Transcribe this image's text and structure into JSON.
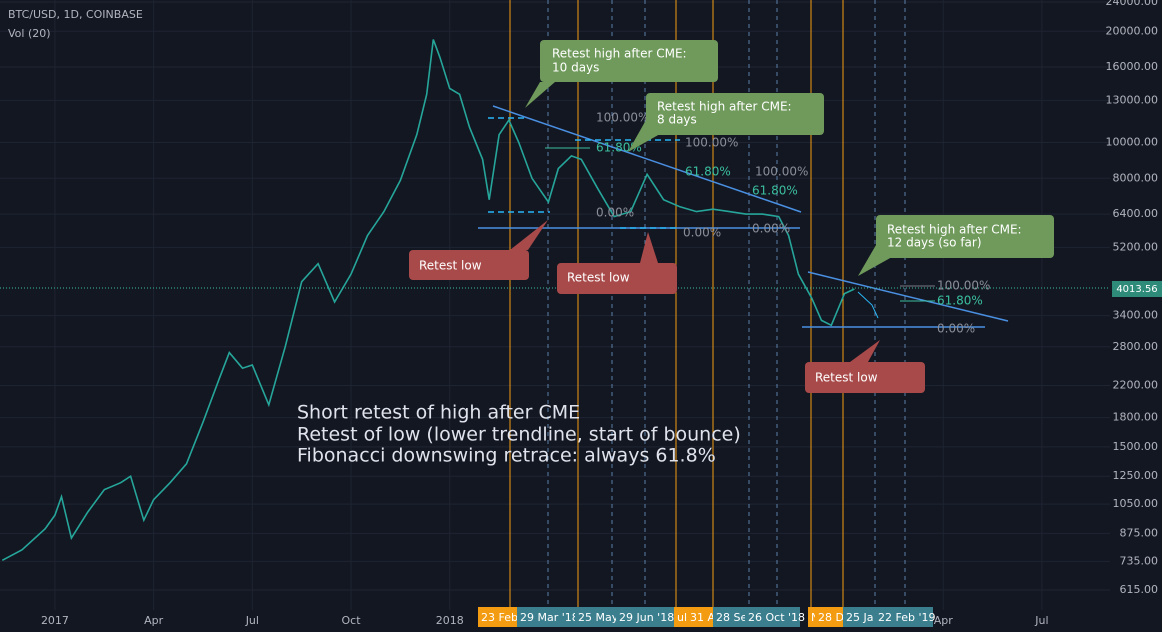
{
  "chart_data": {
    "type": "line",
    "title": "BTC/USD, 1D, COINBASE",
    "subtitle": "Vol (20)",
    "x": [
      -1.6,
      -1,
      -0.3,
      0,
      0.2,
      0.5,
      1,
      1.5,
      2,
      2.3,
      2.7,
      3,
      3.5,
      4,
      4.5,
      5,
      5.3,
      5.7,
      6,
      6.5,
      7,
      7.5,
      8,
      8.5,
      9,
      9.5,
      10,
      10.5,
      11,
      11.3,
      11.5,
      11.7,
      12,
      12.3,
      12.6,
      13,
      13.2,
      13.5,
      13.8,
      14.1,
      14.5,
      15,
      15.3,
      15.7,
      16,
      16.5,
      17,
      17.5,
      18,
      18.5,
      19,
      19.5,
      20,
      20.5,
      21,
      21.5,
      22,
      22.3,
      22.6,
      23,
      23.3,
      23.6,
      24,
      24.3
    ],
    "values": [
      740,
      790,
      900,
      980,
      1100,
      850,
      1000,
      1150,
      1200,
      1250,
      950,
      1080,
      1200,
      1350,
      1750,
      2300,
      2700,
      2450,
      2500,
      1950,
      2800,
      4200,
      4700,
      3700,
      4400,
      5600,
      6500,
      7900,
      10500,
      13500,
      19000,
      17000,
      14000,
      13500,
      11000,
      9000,
      7000,
      10500,
      11500,
      10000,
      8000,
      6900,
      8500,
      9200,
      9000,
      7500,
      6300,
      6500,
      8200,
      7000,
      6700,
      6500,
      6600,
      6500,
      6400,
      6400,
      6300,
      5600,
      4400,
      3800,
      3300,
      3200,
      3900,
      4013.56
    ],
    "color": "#26a69a",
    "xlim": [
      -1.67,
      32.07
    ],
    "xticks": [
      {
        "value": 0,
        "label": "2017"
      },
      {
        "value": 3,
        "label": "Apr"
      },
      {
        "value": 6,
        "label": "Jul"
      },
      {
        "value": 9,
        "label": "Oct"
      },
      {
        "value": 12,
        "label": "2018"
      },
      {
        "value": 27,
        "label": "Apr"
      },
      {
        "value": 30,
        "label": "Jul"
      }
    ],
    "ylim": [
      543,
      24300
    ],
    "yticks": [
      {
        "value": 615,
        "label": "615.00"
      },
      {
        "value": 735,
        "label": "735.00"
      },
      {
        "value": 875,
        "label": "875.00"
      },
      {
        "value": 1050,
        "label": "1050.00"
      },
      {
        "value": 1250,
        "label": "1250.00"
      },
      {
        "value": 1500,
        "label": "1500.00"
      },
      {
        "value": 1800,
        "label": "1800.00"
      },
      {
        "value": 2200,
        "label": "2200.00"
      },
      {
        "value": 2800,
        "label": "2800.00"
      },
      {
        "value": 3400,
        "label": "3400.00"
      },
      {
        "value": 5200,
        "label": "5200.00"
      },
      {
        "value": 6400,
        "label": "6400.00"
      },
      {
        "value": 8000,
        "label": "8000.00"
      },
      {
        "value": 10000,
        "label": "10000.00"
      },
      {
        "value": 13000,
        "label": "13000.00"
      },
      {
        "value": 16000,
        "label": "16000.00"
      },
      {
        "value": 20000,
        "label": "20000.00"
      },
      {
        "value": 24000,
        "label": "24000.00"
      }
    ],
    "log_scale": true,
    "grid": true,
    "last_price": 4013.56
  },
  "annotations": {
    "callouts": [
      [
        "Retest high after CME:",
        "10 days"
      ],
      [
        "Retest high after CME:",
        "8 days"
      ],
      [
        "Retest high after CME:",
        "12 days (so far)"
      ],
      [
        "Retest low"
      ],
      [
        "Retest low"
      ],
      [
        "Retest low"
      ]
    ],
    "fib_labels": [
      "100.00%",
      "61.80%",
      "0.00%",
      "100.00%",
      "61.80%",
      "0.00%",
      "100.00%",
      "61.80%",
      "0.00%",
      "100.00%",
      "61.80%",
      "0.00%"
    ],
    "note_lines": [
      "Short retest of high after CME",
      "Retest of low (lower trendline, start of bounce)",
      "Fibonacci downswing retrace: always 61.8%"
    ],
    "time_markers": [
      "23 Feb",
      "29 Mar '18",
      "25 May",
      "29 Jun '18",
      "ul",
      "31 Au",
      "28 Se",
      "26 Oct '18",
      "N",
      "28 De",
      "25 Ja",
      "22 Feb '19"
    ]
  }
}
